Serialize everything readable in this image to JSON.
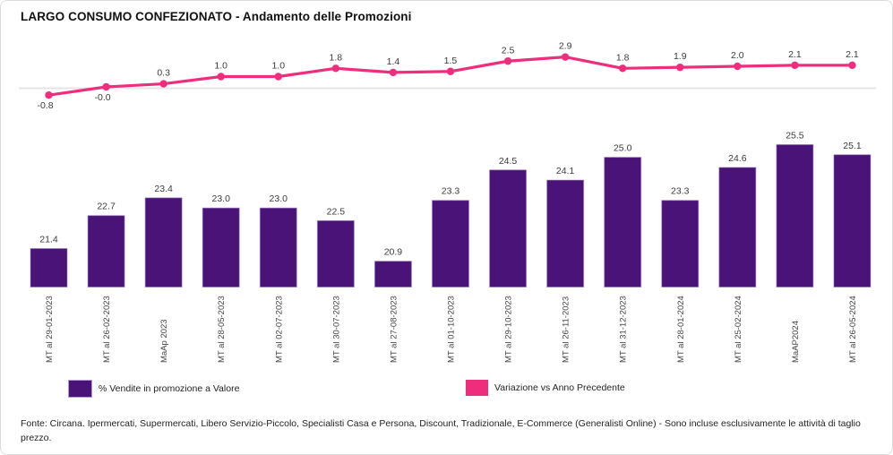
{
  "title": "LARGO CONSUMO CONFEZIONATO - Andamento delle Promozioni",
  "footer": "Fonte: Circana. Ipermercati, Supermercati, Libero Servizio-Piccolo, Specialisti Casa e Persona, Discount, Tradizionale, E-Commerce (Generalisti Online) - Sono incluse esclusivamente le attività di taglio prezzo.",
  "legend": [
    {
      "label": "% Vendite in promozione a Valore",
      "color": "#4a1377"
    },
    {
      "label": "Variazione vs Anno Precedente",
      "color": "#ee2e7d"
    }
  ],
  "colors": {
    "bar": "#4a1377",
    "bar_edge": "#9b7cc2",
    "line": "#ee2e7d",
    "gridline": "#e4e4e4",
    "value_label": "#3a3a3a",
    "category_label": "#444444"
  },
  "chart_data": {
    "type": "combo",
    "title": "LARGO CONSUMO CONFEZIONATO - Andamento delle Promozioni",
    "categories": [
      "MT al 29-01-2023",
      "MT al 26-02-2023",
      "MaAp 2023",
      "MT al 28-05-2023",
      "MT al 02-07-2023",
      "MT al 30-07-2023",
      "MT al 27-08-2023",
      "MT al 01-10-2023",
      "MT al 29-10-2023",
      "MT al 26-11-2023",
      "MT al 31-12-2023",
      "MT al 28-01-2024",
      "MT al 25-02-2024",
      "MaAP2024",
      "MT al 26-05-2024"
    ],
    "series": [
      {
        "name": "% Vendite in promozione a Valore",
        "type": "bar",
        "values": [
          21.4,
          22.7,
          23.4,
          23.0,
          23.0,
          22.5,
          20.9,
          23.3,
          24.5,
          24.1,
          25.0,
          23.3,
          24.6,
          25.5,
          25.1
        ],
        "labels": [
          "21.4",
          "22.7",
          "23.4",
          "23.0",
          "23.0",
          "22.5",
          "20.9",
          "23.3",
          "24.5",
          "24.1",
          "25.0",
          "23.3",
          "24.6",
          "25.5",
          "25.1"
        ]
      },
      {
        "name": "Variazione vs Anno Precedente",
        "type": "line",
        "values": [
          -0.8,
          -0.0,
          0.3,
          1.0,
          1.0,
          1.8,
          1.4,
          1.5,
          2.5,
          2.9,
          1.8,
          1.9,
          2.0,
          2.1,
          2.1
        ],
        "labels": [
          "-0.8",
          "-0.0",
          "0.3",
          "1.0",
          "1.0",
          "1.8",
          "1.4",
          "1.5",
          "2.5",
          "2.9",
          "1.8",
          "1.9",
          "2.0",
          "2.1",
          "2.1"
        ]
      }
    ],
    "xlabel": "",
    "ylabel": "",
    "value_labels": true,
    "grid": "single-zero-line-for-line-series",
    "x_tick_rotation": 90,
    "legend_position": "bottom"
  }
}
